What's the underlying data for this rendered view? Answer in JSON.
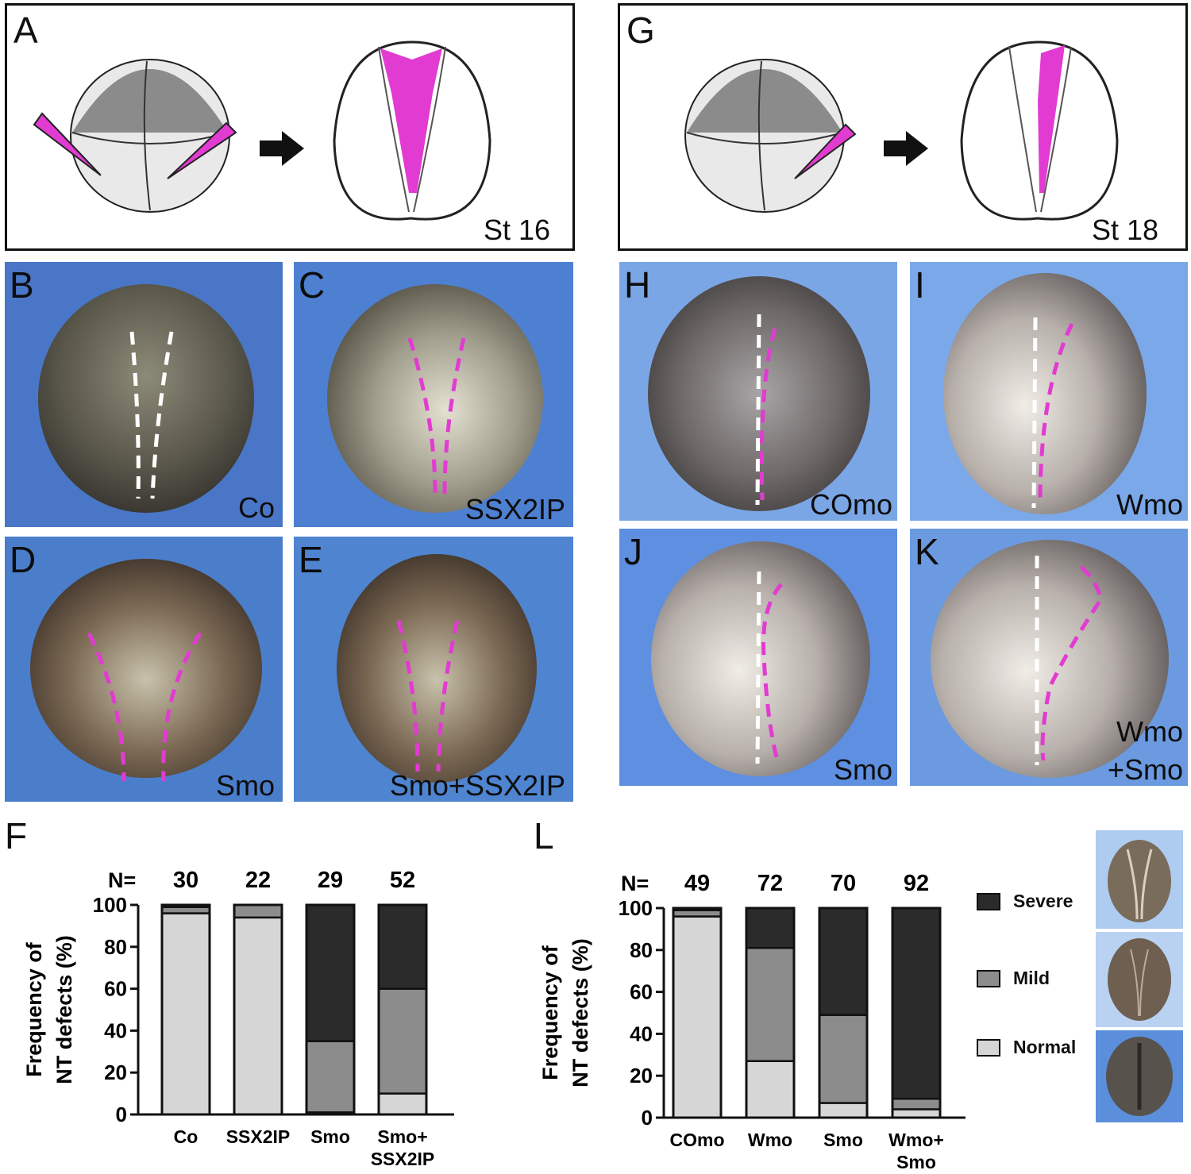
{
  "panels": {
    "A": {
      "label": "A",
      "stage": "St 16"
    },
    "G": {
      "label": "G",
      "stage": "St 18"
    },
    "B": {
      "label": "B",
      "condition": "Co"
    },
    "C": {
      "label": "C",
      "condition": "SSX2IP"
    },
    "D": {
      "label": "D",
      "condition": "Smo"
    },
    "E": {
      "label": "E",
      "condition": "Smo+SSX2IP"
    },
    "H": {
      "label": "H",
      "condition": "COmo"
    },
    "I": {
      "label": "I",
      "condition": "Wmo"
    },
    "J": {
      "label": "J",
      "condition": "Smo"
    },
    "K": {
      "label": "K",
      "condition_line1": "Wmo",
      "condition_line2": "+Smo"
    },
    "F": {
      "label": "F"
    },
    "L": {
      "label": "L"
    }
  },
  "legend": {
    "severe": "Severe",
    "mild": "Mild",
    "normal": "Normal"
  },
  "colors": {
    "magenta": "#e23bd2",
    "normal": "#d6d6d6",
    "mild": "#8c8c8c",
    "severe": "#2b2b2b",
    "photo_bg": "#4b86d6"
  },
  "chart_data": [
    {
      "type": "bar",
      "stacked": true,
      "panel": "F",
      "ylabel_line1": "Frequency of",
      "ylabel_line2": "NT defects (%)",
      "ylim": [
        0,
        100
      ],
      "yticks": [
        "0",
        "20",
        "40",
        "60",
        "80",
        "100"
      ],
      "n_label": "N=",
      "categories": [
        [
          "Co"
        ],
        [
          "SSX2IP"
        ],
        [
          "Smo"
        ],
        [
          "Smo+",
          "SSX2IP"
        ]
      ],
      "n": [
        "30",
        "22",
        "29",
        "52"
      ],
      "series": [
        {
          "name": "Normal",
          "values": [
            96,
            94,
            1,
            10
          ]
        },
        {
          "name": "Mild",
          "values": [
            3,
            6,
            34,
            50
          ]
        },
        {
          "name": "Severe",
          "values": [
            1,
            0,
            65,
            40
          ]
        }
      ]
    },
    {
      "type": "bar",
      "stacked": true,
      "panel": "L",
      "ylabel_line1": "Frequency of",
      "ylabel_line2": "NT defects (%)",
      "ylim": [
        0,
        100
      ],
      "yticks": [
        "0",
        "20",
        "40",
        "60",
        "80",
        "100"
      ],
      "n_label": "N=",
      "categories": [
        [
          "COmo"
        ],
        [
          "Wmo"
        ],
        [
          "Smo"
        ],
        [
          "Wmo+",
          "Smo"
        ]
      ],
      "n": [
        "49",
        "72",
        "70",
        "92"
      ],
      "series": [
        {
          "name": "Normal",
          "values": [
            96,
            27,
            7,
            4
          ]
        },
        {
          "name": "Mild",
          "values": [
            3,
            54,
            42,
            5
          ]
        },
        {
          "name": "Severe",
          "values": [
            1,
            19,
            51,
            91
          ]
        }
      ]
    }
  ]
}
